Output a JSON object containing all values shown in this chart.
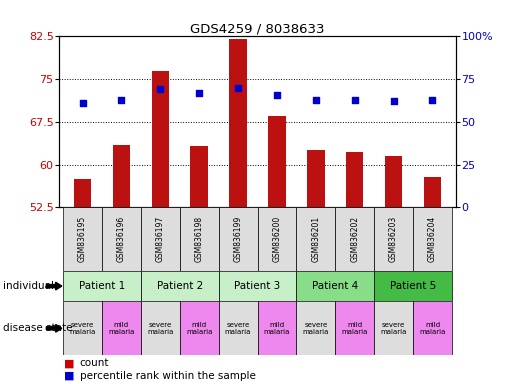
{
  "title": "GDS4259 / 8038633",
  "samples": [
    "GSM836195",
    "GSM836196",
    "GSM836197",
    "GSM836198",
    "GSM836199",
    "GSM836200",
    "GSM836201",
    "GSM836202",
    "GSM836203",
    "GSM836204"
  ],
  "count_values": [
    57.5,
    63.5,
    76.5,
    63.2,
    82.0,
    68.5,
    62.5,
    62.2,
    61.5,
    57.8
  ],
  "percentile_values": [
    61,
    63,
    69,
    67,
    70,
    66,
    63,
    63,
    62,
    63
  ],
  "ylim_left": [
    52.5,
    82.5
  ],
  "ylim_right": [
    0,
    100
  ],
  "yticks_left": [
    52.5,
    60.0,
    67.5,
    75.0,
    82.5
  ],
  "ytick_labels_left": [
    "52.5",
    "60",
    "67.5",
    "75",
    "82.5"
  ],
  "yticks_right": [
    0,
    25,
    50,
    75,
    100
  ],
  "ytick_labels_right": [
    "0",
    "25",
    "50",
    "75",
    "100%"
  ],
  "patients": [
    {
      "label": "Patient 1",
      "cols": [
        0,
        1
      ],
      "color": "#c8f0c8"
    },
    {
      "label": "Patient 2",
      "cols": [
        2,
        3
      ],
      "color": "#c8f0c8"
    },
    {
      "label": "Patient 3",
      "cols": [
        4,
        5
      ],
      "color": "#c8f0c8"
    },
    {
      "label": "Patient 4",
      "cols": [
        6,
        7
      ],
      "color": "#88dd88"
    },
    {
      "label": "Patient 5",
      "cols": [
        8,
        9
      ],
      "color": "#44bb44"
    }
  ],
  "disease_states": [
    {
      "label": "severe\nmalaria",
      "col": 0,
      "color": "#dddddd"
    },
    {
      "label": "mild\nmalaria",
      "col": 1,
      "color": "#ee88ee"
    },
    {
      "label": "severe\nmalaria",
      "col": 2,
      "color": "#dddddd"
    },
    {
      "label": "mild\nmalaria",
      "col": 3,
      "color": "#ee88ee"
    },
    {
      "label": "severe\nmalaria",
      "col": 4,
      "color": "#dddddd"
    },
    {
      "label": "mild\nmalaria",
      "col": 5,
      "color": "#ee88ee"
    },
    {
      "label": "severe\nmalaria",
      "col": 6,
      "color": "#dddddd"
    },
    {
      "label": "mild\nmalaria",
      "col": 7,
      "color": "#ee88ee"
    },
    {
      "label": "severe\nmalaria",
      "col": 8,
      "color": "#dddddd"
    },
    {
      "label": "mild\nmalaria",
      "col": 9,
      "color": "#ee88ee"
    }
  ],
  "bar_color": "#bb1111",
  "dot_color": "#0000cc",
  "bar_width": 0.45,
  "grid_color": "black",
  "axis_label_color_left": "#cc0000",
  "axis_label_color_right": "#0000cc",
  "legend_count_color": "#cc0000",
  "legend_dot_color": "#0000cc"
}
